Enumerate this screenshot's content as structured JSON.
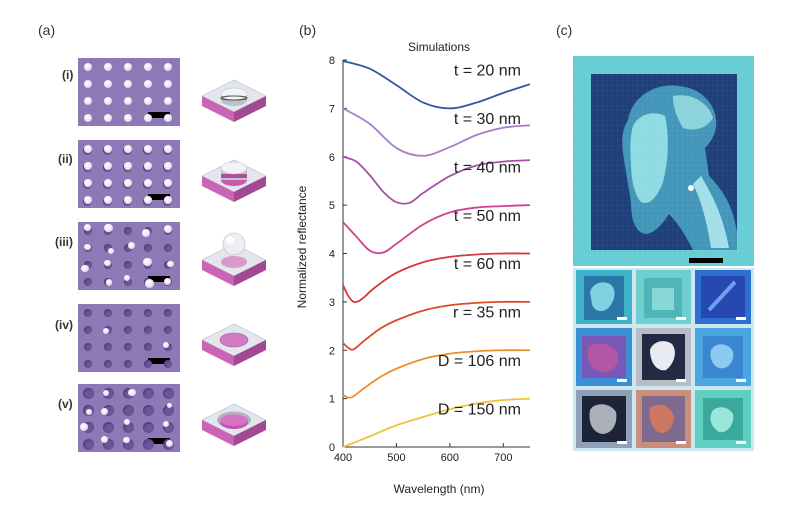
{
  "panels": {
    "a": "(a)",
    "b": "(b)",
    "c": "(c)"
  },
  "rows": [
    {
      "label": "(i)"
    },
    {
      "label": "(ii)"
    },
    {
      "label": "(iii)"
    },
    {
      "label": "(iv)"
    },
    {
      "label": "(v)"
    }
  ],
  "colors": {
    "sem_background": "#8e78b6",
    "substrate_pink": "#c964b5",
    "substrate_top": "#dfe3ea",
    "painting_cyan": "#69cfd6",
    "painting_navy": "#1e3f7a"
  },
  "chart_data": {
    "type": "line",
    "title": "Simulations",
    "xlabel": "Wavelength (nm)",
    "ylabel": "Normalized reflectance",
    "xlim": [
      400,
      750
    ],
    "ylim": [
      0,
      8
    ],
    "xticks": [
      "400",
      "500",
      "600",
      "700"
    ],
    "yticks": [
      "0",
      "1",
      "2",
      "3",
      "4",
      "5",
      "6",
      "7",
      "8"
    ],
    "grid": false,
    "series": [
      {
        "name": "t = 20 nm",
        "color": "#2d5a9e",
        "x": [
          400,
          450,
          500,
          550,
          600,
          650,
          700,
          750
        ],
        "y": [
          7.98,
          7.82,
          7.48,
          7.12,
          7.0,
          7.12,
          7.32,
          7.5
        ]
      },
      {
        "name": "t = 30 nm",
        "color": "#a97ec9",
        "x": [
          400,
          450,
          500,
          550,
          600,
          650,
          700,
          750
        ],
        "y": [
          7.0,
          6.68,
          6.18,
          6.02,
          6.2,
          6.45,
          6.6,
          6.65
        ]
      },
      {
        "name": "t = 40 nm",
        "color": "#a452a6",
        "x": [
          400,
          425,
          450,
          475,
          500,
          525,
          550,
          600,
          650,
          700,
          750
        ],
        "y": [
          6.0,
          5.9,
          5.62,
          5.28,
          5.06,
          5.05,
          5.25,
          5.6,
          5.82,
          5.9,
          5.93
        ]
      },
      {
        "name": "t = 50 nm",
        "color": "#d0418d",
        "x": [
          400,
          425,
          450,
          475,
          500,
          550,
          600,
          650,
          700,
          750
        ],
        "y": [
          4.65,
          4.35,
          4.06,
          4.02,
          4.2,
          4.6,
          4.85,
          4.95,
          4.98,
          5.0
        ]
      },
      {
        "name": "t = 60 nm",
        "color": "#d8363b",
        "x": [
          400,
          410,
          420,
          430,
          440,
          460,
          500,
          550,
          600,
          650,
          700,
          750
        ],
        "y": [
          3.35,
          3.12,
          3.0,
          3.02,
          3.1,
          3.3,
          3.6,
          3.82,
          3.93,
          3.98,
          4.0,
          4.0
        ]
      },
      {
        "name": "r = 35 nm",
        "color": "#e04a2c",
        "x": [
          400,
          410,
          420,
          440,
          470,
          500,
          550,
          600,
          650,
          700,
          750
        ],
        "y": [
          2.15,
          2.05,
          2.02,
          2.2,
          2.45,
          2.62,
          2.82,
          2.93,
          2.98,
          3.0,
          3.0
        ]
      },
      {
        "name": "D = 106 nm",
        "color": "#ee8f2f",
        "x": [
          400,
          410,
          420,
          440,
          470,
          500,
          550,
          600,
          650,
          700,
          750
        ],
        "y": [
          1.08,
          1.02,
          1.05,
          1.22,
          1.45,
          1.62,
          1.82,
          1.93,
          1.98,
          2.0,
          2.0
        ]
      },
      {
        "name": "D = 150 nm",
        "color": "#f2c23a",
        "x": [
          400,
          450,
          500,
          550,
          600,
          650,
          700,
          750
        ],
        "y": [
          0.0,
          0.22,
          0.45,
          0.62,
          0.78,
          0.9,
          0.97,
          1.0
        ]
      }
    ]
  }
}
